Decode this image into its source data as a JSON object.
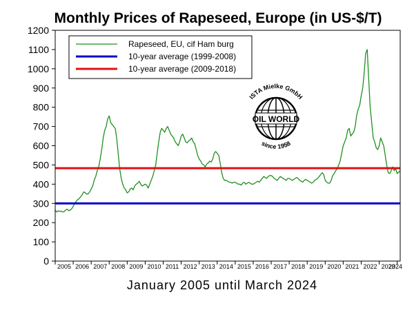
{
  "colors": {
    "series": "#1f8f1f",
    "avg1": "#0000cc",
    "avg2": "#e01010",
    "axis": "#000000",
    "background": "#ffffff"
  },
  "stamp": {
    "top_text": "ISTA Mielke GmbH",
    "center_text": "OIL WORLD",
    "bottom_text": "since 1958",
    "icon": "globe-icon"
  },
  "chart_data": {
    "type": "line",
    "title": "Monthly Prices of Rapeseed, Europe (in US-$/T)",
    "xlabel": "January 2005 until March 2024",
    "ylabel": "",
    "ylim": [
      0,
      1200
    ],
    "xlim": [
      "2005-01",
      "2024-03"
    ],
    "y_ticks": [
      "0",
      "100",
      "200",
      "300",
      "400",
      "500",
      "600",
      "700",
      "800",
      "900",
      "1000",
      "1100",
      "1200"
    ],
    "x_ticks": [
      "2005",
      "2006",
      "2007",
      "2008",
      "2009",
      "2010",
      "2011",
      "2012",
      "2013",
      "2014",
      "2015",
      "2016",
      "2017",
      "2018",
      "2019",
      "2020",
      "2021",
      "2022",
      "2023",
      "2024"
    ],
    "grid": false,
    "legend_position": "top-left",
    "legend": [
      {
        "label": "Rapeseed, EU, cif Ham burg",
        "color": "#1f8f1f",
        "style": "thin"
      },
      {
        "label": "10-year average (1999-2008)",
        "color": "#0000cc",
        "style": "thick"
      },
      {
        "label": "10-year average (2009-2018)",
        "color": "#e01010",
        "style": "thick"
      }
    ],
    "series": [
      {
        "name": "Rapeseed, EU, cif Ham burg",
        "start": "2005-01",
        "frequency": "monthly",
        "values": [
          265,
          255,
          262,
          258,
          260,
          255,
          258,
          265,
          270,
          262,
          265,
          272,
          285,
          300,
          310,
          320,
          325,
          335,
          345,
          360,
          355,
          348,
          350,
          360,
          375,
          390,
          420,
          440,
          470,
          490,
          530,
          580,
          640,
          680,
          700,
          740,
          755,
          720,
          710,
          700,
          690,
          640,
          560,
          480,
          430,
          400,
          380,
          370,
          355,
          360,
          375,
          380,
          370,
          390,
          400,
          405,
          415,
          400,
          390,
          395,
          400,
          395,
          380,
          400,
          420,
          440,
          470,
          500,
          560,
          620,
          670,
          690,
          680,
          670,
          690,
          700,
          680,
          660,
          650,
          640,
          620,
          610,
          600,
          620,
          650,
          660,
          640,
          620,
          615,
          625,
          630,
          640,
          620,
          610,
          580,
          550,
          530,
          520,
          505,
          500,
          490,
          505,
          510,
          520,
          515,
          530,
          560,
          570,
          560,
          550,
          510,
          460,
          430,
          420,
          420,
          415,
          410,
          410,
          405,
          410,
          410,
          405,
          400,
          400,
          395,
          405,
          410,
          400,
          405,
          410,
          405,
          400,
          400,
          405,
          410,
          415,
          410,
          420,
          430,
          440,
          435,
          430,
          440,
          445,
          445,
          440,
          430,
          425,
          420,
          430,
          440,
          435,
          430,
          425,
          420,
          430,
          430,
          425,
          420,
          425,
          430,
          435,
          430,
          420,
          415,
          410,
          420,
          425,
          420,
          415,
          410,
          405,
          410,
          420,
          425,
          430,
          440,
          450,
          460,
          450,
          420,
          410,
          405,
          405,
          420,
          445,
          455,
          470,
          480,
          500,
          520,
          560,
          600,
          620,
          640,
          680,
          690,
          650,
          660,
          670,
          700,
          760,
          790,
          810,
          860,
          900,
          980,
          1080,
          1100,
          950,
          800,
          720,
          640,
          620,
          590,
          580,
          600,
          640,
          620,
          600,
          550,
          500,
          460,
          455,
          470,
          490,
          470,
          480,
          455,
          462,
          470
        ]
      },
      {
        "name": "10-year average (1999-2008)",
        "constant": 300
      },
      {
        "name": "10-year average (2009-2018)",
        "constant": 483
      }
    ]
  }
}
